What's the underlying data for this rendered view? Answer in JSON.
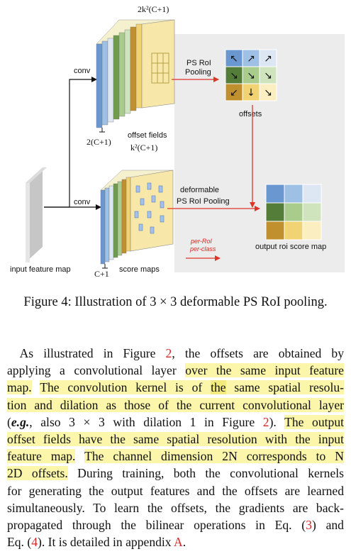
{
  "figure": {
    "labels": {
      "top_channels": "2k²(C+1)",
      "conv_top": "conv",
      "ps_roi_pooling_line1": "PS RoI",
      "ps_roi_pooling_line2": "Pooling",
      "offsets": "offsets",
      "offset_fields_channels": "2(C+1)",
      "offset_fields": "offset fields",
      "score_channels": "k²(C+1)",
      "conv_bottom": "conv",
      "deformable_line1": "deformable",
      "deformable_line2": "PS RoI Pooling",
      "per_roi": "per-RoI",
      "per_class": "per-class",
      "output_score_map": "output roi score map",
      "input_feature_map": "input feature map",
      "score_channels_bottom": "C+1",
      "score_maps": "score maps"
    },
    "colors": {
      "blue": "#6a97cf",
      "lightblue": "#dde7f3",
      "darkgreen": "#557d3a",
      "lightgreen": "#a9cc8d",
      "darkyellow": "#c0902e",
      "yellow": "#f2d374",
      "lightyellow": "#fbeec0",
      "arrow_red": "#e0332a",
      "panel_gray": "#eaeaea"
    },
    "offset_arrows": [
      "↖",
      "↗",
      "↗",
      "↘",
      "↘",
      "↘",
      "↙",
      "↓",
      "↘"
    ]
  },
  "caption": "Figure 4: Illustration of 3 × 3 deformable PS RoI pooling.",
  "paragraph": {
    "l1_a": "As illustrated in Figure ",
    "l1_ref": "2",
    "l1_b": ", the offsets are obtained by",
    "l2_a": "applying a convolutional layer ",
    "l2_hl": "over the same input feature",
    "l3_hl1": "map.",
    "l3_sp": " ",
    "l3_hl2": "The convolution kernel is of ",
    "l3_hl3": "the",
    "l3_hl4": " same spatial resolu-",
    "l4_hl": "tion and dilation as those of the current convolutional layer",
    "l5_a": "(",
    "l5_eg": "e.g.",
    "l5_b": ", also 3 × 3 with dilation 1 in Figure ",
    "l5_ref": "2",
    "l5_c": "). ",
    "l5_hl": "The output",
    "l6_hl": "offset fields have the same spatial resolution with the input",
    "l7_hl1": "feature map.",
    "l7_sp": " ",
    "l7_hl2": "The channel dimension 2N corresponds to N",
    "l8_hl": "2D offsets.",
    "l8_b": " During training, both the convolutional kernels",
    "l9": "for generating the output features and the offsets are learned",
    "l10": "simultaneously. To learn the offsets, the gradients are back-",
    "l11_a": "propagated through the bilinear operations in Eq. (",
    "l11_ref": "3",
    "l11_b": ") and",
    "l12_a": "Eq. (",
    "l12_ref": "4",
    "l12_b": "). It is detailed in appendix ",
    "l12_ref2": "A",
    "l12_c": "."
  }
}
